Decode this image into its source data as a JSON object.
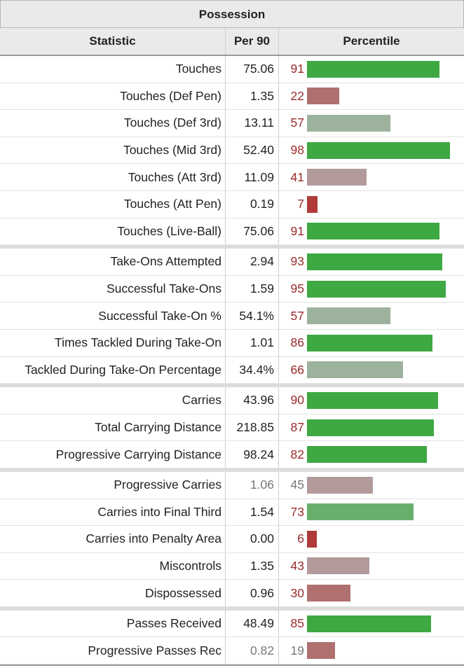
{
  "caption": "Possession",
  "headers": {
    "statistic": "Statistic",
    "per90": "Per 90",
    "percentile": "Percentile"
  },
  "colors": {
    "high": "#3ea843",
    "mid_green": "#6aae6c",
    "neutral_green": "#9cb29c",
    "neutral_red": "#b39a9a",
    "low": "#b07070",
    "very_low": "#b03a3a"
  },
  "groups": [
    [
      {
        "label": "Touches",
        "per90": "75.06",
        "percentile": 91,
        "muted": false
      },
      {
        "label": "Touches (Def Pen)",
        "per90": "1.35",
        "percentile": 22,
        "muted": false
      },
      {
        "label": "Touches (Def 3rd)",
        "per90": "13.11",
        "percentile": 57,
        "muted": false
      },
      {
        "label": "Touches (Mid 3rd)",
        "per90": "52.40",
        "percentile": 98,
        "muted": false
      },
      {
        "label": "Touches (Att 3rd)",
        "per90": "11.09",
        "percentile": 41,
        "muted": false
      },
      {
        "label": "Touches (Att Pen)",
        "per90": "0.19",
        "percentile": 7,
        "muted": false
      },
      {
        "label": "Touches (Live-Ball)",
        "per90": "75.06",
        "percentile": 91,
        "muted": false
      }
    ],
    [
      {
        "label": "Take-Ons Attempted",
        "per90": "2.94",
        "percentile": 93,
        "muted": false
      },
      {
        "label": "Successful Take-Ons",
        "per90": "1.59",
        "percentile": 95,
        "muted": false
      },
      {
        "label": "Successful Take-On %",
        "per90": "54.1%",
        "percentile": 57,
        "muted": false
      },
      {
        "label": "Times Tackled During Take-On",
        "per90": "1.01",
        "percentile": 86,
        "muted": false
      },
      {
        "label": "Tackled During Take-On Percentage",
        "per90": "34.4%",
        "percentile": 66,
        "muted": false
      }
    ],
    [
      {
        "label": "Carries",
        "per90": "43.96",
        "percentile": 90,
        "muted": false
      },
      {
        "label": "Total Carrying Distance",
        "per90": "218.85",
        "percentile": 87,
        "muted": false
      },
      {
        "label": "Progressive Carrying Distance",
        "per90": "98.24",
        "percentile": 82,
        "muted": false
      }
    ],
    [
      {
        "label": "Progressive Carries",
        "per90": "1.06",
        "percentile": 45,
        "muted": true
      },
      {
        "label": "Carries into Final Third",
        "per90": "1.54",
        "percentile": 73,
        "muted": false
      },
      {
        "label": "Carries into Penalty Area",
        "per90": "0.00",
        "percentile": 6,
        "muted": false
      },
      {
        "label": "Miscontrols",
        "per90": "1.35",
        "percentile": 43,
        "muted": false
      },
      {
        "label": "Dispossessed",
        "per90": "0.96",
        "percentile": 30,
        "muted": false
      }
    ],
    [
      {
        "label": "Passes Received",
        "per90": "48.49",
        "percentile": 85,
        "muted": false
      },
      {
        "label": "Progressive Passes Rec",
        "per90": "0.82",
        "percentile": 19,
        "muted": true
      }
    ]
  ]
}
